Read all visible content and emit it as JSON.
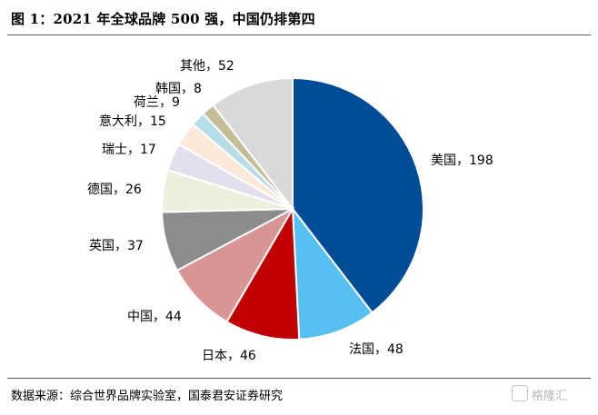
{
  "title": "图 1：2021 年全球品牌 500 强，中国仍排第四",
  "source": "数据来源：综合世界品牌实验室，国泰君安证券研究",
  "watermark": "格隆汇",
  "chart_data": {
    "type": "pie",
    "start_angle_deg": 90,
    "direction": "clockwise",
    "categories": [
      "美国",
      "法国",
      "日本",
      "中国",
      "英国",
      "德国",
      "瑞士",
      "意大利",
      "荷兰",
      "韩国",
      "其他"
    ],
    "values": [
      198,
      48,
      46,
      44,
      37,
      26,
      17,
      15,
      9,
      8,
      52
    ],
    "labels": [
      "美国，198",
      "法国，48",
      "日本，46",
      "中国，44",
      "英国，37",
      "德国，26",
      "瑞士，17",
      "意大利，15",
      "荷兰，9",
      "韩国，8",
      "其他，52"
    ],
    "colors": [
      "#004C97",
      "#56C1F0",
      "#C00000",
      "#D99594",
      "#8C8C8C",
      "#EBF1DE",
      "#E4DFEC",
      "#FDE9D9",
      "#B7DEE8",
      "#C4BD97",
      "#D9D9D9"
    ]
  }
}
